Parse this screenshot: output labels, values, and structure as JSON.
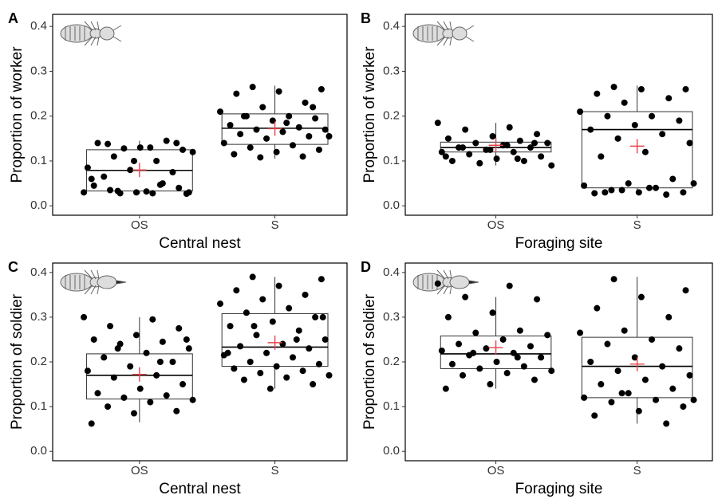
{
  "chart_data": [
    {
      "type": "box",
      "label": "A",
      "ylabel": "Proportion of worker",
      "xlabel": "Central nest",
      "categories": [
        "OS",
        "S"
      ],
      "ylim": [
        -0.021,
        0.427
      ],
      "yticks": [
        {
          "value": 0,
          "label": "0.0"
        },
        {
          "value": 0.1,
          "label": "0.1"
        },
        {
          "value": 0.2,
          "label": "0.2"
        },
        {
          "value": 0.3,
          "label": "0.3"
        },
        {
          "value": 0.4,
          "label": "0.4"
        }
      ],
      "point_color": "#000000",
      "mean_color": "#e8434a",
      "boxes": [
        {
          "min": 0.027,
          "q1": 0.033,
          "median": 0.079,
          "q3": 0.125,
          "max": 0.145,
          "mean": 0.08,
          "points": [
            0.03,
            0.028,
            0.035,
            0.04,
            0.03,
            0.045,
            0.05,
            0.028,
            0.03,
            0.032,
            0.065,
            0.075,
            0.08,
            0.085,
            0.1,
            0.11,
            0.125,
            0.13,
            0.14,
            0.145,
            0.128,
            0.12,
            0.13,
            0.138,
            0.14,
            0.1,
            0.06,
            0.047,
            0.033,
            0.027
          ]
        },
        {
          "min": 0.105,
          "q1": 0.137,
          "median": 0.173,
          "q3": 0.205,
          "max": 0.268,
          "mean": 0.172,
          "points": [
            0.265,
            0.26,
            0.255,
            0.25,
            0.23,
            0.22,
            0.21,
            0.2,
            0.2,
            0.195,
            0.19,
            0.18,
            0.175,
            0.17,
            0.17,
            0.165,
            0.16,
            0.155,
            0.15,
            0.14,
            0.135,
            0.13,
            0.125,
            0.12,
            0.115,
            0.11,
            0.108,
            0.155,
            0.185,
            0.2,
            0.22
          ]
        }
      ]
    },
    {
      "type": "box",
      "label": "B",
      "ylabel": "Proportion of worker",
      "xlabel": "Foraging site",
      "categories": [
        "OS",
        "S"
      ],
      "ylim": [
        -0.021,
        0.427
      ],
      "yticks": [
        {
          "value": 0,
          "label": "0.0"
        },
        {
          "value": 0.1,
          "label": "0.1"
        },
        {
          "value": 0.2,
          "label": "0.2"
        },
        {
          "value": 0.3,
          "label": "0.3"
        },
        {
          "value": 0.4,
          "label": "0.4"
        }
      ],
      "point_color": "#000000",
      "mean_color": "#e8434a",
      "boxes": [
        {
          "min": 0.09,
          "q1": 0.12,
          "median": 0.13,
          "q3": 0.142,
          "max": 0.185,
          "mean": 0.135,
          "points": [
            0.185,
            0.175,
            0.17,
            0.16,
            0.155,
            0.15,
            0.145,
            0.14,
            0.14,
            0.135,
            0.13,
            0.13,
            0.125,
            0.12,
            0.12,
            0.115,
            0.11,
            0.105,
            0.1,
            0.1,
            0.095,
            0.09,
            0.135,
            0.13,
            0.14,
            0.125,
            0.11,
            0.105
          ]
        },
        {
          "min": 0.025,
          "q1": 0.04,
          "median": 0.17,
          "q3": 0.21,
          "max": 0.268,
          "mean": 0.133,
          "points": [
            0.265,
            0.26,
            0.26,
            0.25,
            0.24,
            0.23,
            0.21,
            0.2,
            0.2,
            0.19,
            0.18,
            0.17,
            0.16,
            0.15,
            0.14,
            0.12,
            0.11,
            0.06,
            0.05,
            0.045,
            0.04,
            0.035,
            0.03,
            0.03,
            0.028,
            0.025,
            0.035,
            0.05,
            0.04,
            0.03
          ]
        }
      ]
    },
    {
      "type": "box",
      "label": "C",
      "ylabel": "Proportion of soldier",
      "xlabel": "Central nest",
      "categories": [
        "OS",
        "S"
      ],
      "ylim": [
        -0.021,
        0.421
      ],
      "yticks": [
        {
          "value": 0,
          "label": "0.0"
        },
        {
          "value": 0.1,
          "label": "0.1"
        },
        {
          "value": 0.2,
          "label": "0.2"
        },
        {
          "value": 0.3,
          "label": "0.3"
        },
        {
          "value": 0.4,
          "label": "0.4"
        }
      ],
      "point_color": "#000000",
      "mean_color": "#e8434a",
      "boxes": [
        {
          "min": 0.065,
          "q1": 0.117,
          "median": 0.17,
          "q3": 0.218,
          "max": 0.3,
          "mean": 0.172,
          "points": [
            0.3,
            0.295,
            0.28,
            0.275,
            0.26,
            0.25,
            0.245,
            0.24,
            0.23,
            0.22,
            0.21,
            0.2,
            0.19,
            0.18,
            0.17,
            0.165,
            0.15,
            0.14,
            0.13,
            0.125,
            0.12,
            0.115,
            0.11,
            0.1,
            0.09,
            0.085,
            0.062,
            0.2,
            0.23,
            0.25
          ]
        },
        {
          "min": 0.14,
          "q1": 0.19,
          "median": 0.233,
          "q3": 0.308,
          "max": 0.39,
          "mean": 0.243,
          "points": [
            0.39,
            0.385,
            0.37,
            0.36,
            0.35,
            0.34,
            0.33,
            0.32,
            0.31,
            0.3,
            0.29,
            0.28,
            0.27,
            0.26,
            0.25,
            0.24,
            0.235,
            0.23,
            0.22,
            0.215,
            0.21,
            0.2,
            0.195,
            0.19,
            0.185,
            0.18,
            0.175,
            0.17,
            0.165,
            0.16,
            0.15,
            0.14,
            0.22,
            0.25,
            0.28,
            0.3
          ]
        }
      ]
    },
    {
      "type": "box",
      "label": "D",
      "ylabel": "Proportion of soldier",
      "xlabel": "Foraging site",
      "categories": [
        "OS",
        "S"
      ],
      "ylim": [
        -0.021,
        0.421
      ],
      "yticks": [
        {
          "value": 0,
          "label": "0.0"
        },
        {
          "value": 0.1,
          "label": "0.1"
        },
        {
          "value": 0.2,
          "label": "0.2"
        },
        {
          "value": 0.3,
          "label": "0.3"
        },
        {
          "value": 0.4,
          "label": "0.4"
        }
      ],
      "point_color": "#000000",
      "mean_color": "#e8434a",
      "boxes": [
        {
          "min": 0.14,
          "q1": 0.185,
          "median": 0.218,
          "q3": 0.258,
          "max": 0.345,
          "mean": 0.232,
          "points": [
            0.375,
            0.37,
            0.345,
            0.34,
            0.31,
            0.3,
            0.27,
            0.265,
            0.26,
            0.25,
            0.24,
            0.235,
            0.23,
            0.225,
            0.22,
            0.215,
            0.21,
            0.2,
            0.195,
            0.19,
            0.185,
            0.18,
            0.175,
            0.17,
            0.16,
            0.15,
            0.14,
            0.21,
            0.22
          ]
        },
        {
          "min": 0.062,
          "q1": 0.12,
          "median": 0.19,
          "q3": 0.255,
          "max": 0.39,
          "mean": 0.195,
          "points": [
            0.385,
            0.36,
            0.345,
            0.32,
            0.3,
            0.27,
            0.265,
            0.25,
            0.24,
            0.23,
            0.21,
            0.2,
            0.19,
            0.18,
            0.17,
            0.16,
            0.15,
            0.14,
            0.13,
            0.12,
            0.115,
            0.11,
            0.1,
            0.09,
            0.08,
            0.062,
            0.13,
            0.115
          ]
        }
      ]
    }
  ]
}
